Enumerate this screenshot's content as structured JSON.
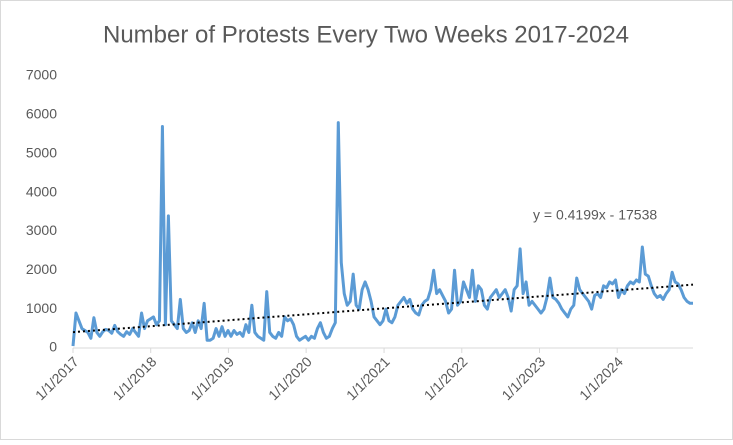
{
  "chart_data": {
    "type": "line",
    "title": "Number of Protests Every Two Weeks 2017-2024",
    "x": [
      "1/1/2017",
      "1/15/2017",
      "1/29/2017",
      "2/12/2017",
      "2/26/2017",
      "3/12/2017",
      "3/26/2017",
      "4/9/2017",
      "4/23/2017",
      "5/7/2017",
      "5/21/2017",
      "6/4/2017",
      "6/18/2017",
      "7/2/2017",
      "7/16/2017",
      "7/30/2017",
      "8/13/2017",
      "8/27/2017",
      "9/10/2017",
      "9/24/2017",
      "10/8/2017",
      "10/22/2017",
      "11/5/2017",
      "11/19/2017",
      "12/3/2017",
      "12/17/2017",
      "12/31/2017",
      "1/14/2018",
      "1/28/2018",
      "2/11/2018",
      "2/25/2018",
      "3/11/2018",
      "3/25/2018",
      "4/8/2018",
      "4/22/2018",
      "5/6/2018",
      "5/20/2018",
      "6/3/2018",
      "6/17/2018",
      "7/1/2018",
      "7/15/2018",
      "7/29/2018",
      "8/12/2018",
      "8/26/2018",
      "9/9/2018",
      "9/23/2018",
      "10/7/2018",
      "10/21/2018",
      "11/4/2018",
      "11/18/2018",
      "12/2/2018",
      "12/16/2018",
      "12/30/2018",
      "1/13/2019",
      "1/27/2019",
      "2/10/2019",
      "2/24/2019",
      "3/10/2019",
      "3/24/2019",
      "4/7/2019",
      "4/21/2019",
      "5/5/2019",
      "5/19/2019",
      "6/2/2019",
      "6/16/2019",
      "6/30/2019",
      "7/14/2019",
      "7/28/2019",
      "8/11/2019",
      "8/25/2019",
      "9/8/2019",
      "9/22/2019",
      "10/6/2019",
      "10/20/2019",
      "11/3/2019",
      "11/17/2019",
      "12/1/2019",
      "12/15/2019",
      "12/29/2019",
      "1/12/2020",
      "1/26/2020",
      "2/9/2020",
      "2/23/2020",
      "3/8/2020",
      "3/22/2020",
      "4/5/2020",
      "4/19/2020",
      "5/3/2020",
      "5/17/2020",
      "5/31/2020",
      "6/14/2020",
      "6/28/2020",
      "7/12/2020",
      "7/26/2020",
      "8/9/2020",
      "8/23/2020",
      "9/6/2020",
      "9/20/2020",
      "10/4/2020",
      "10/18/2020",
      "11/1/2020",
      "11/15/2020",
      "11/29/2020",
      "12/13/2020",
      "12/27/2020",
      "1/10/2021",
      "1/24/2021",
      "2/7/2021",
      "2/21/2021",
      "3/7/2021",
      "3/21/2021",
      "4/4/2021",
      "4/18/2021",
      "5/2/2021",
      "5/16/2021",
      "5/30/2021",
      "6/13/2021",
      "6/27/2021",
      "7/11/2021",
      "7/25/2021",
      "8/8/2021",
      "8/22/2021",
      "9/5/2021",
      "9/19/2021",
      "10/3/2021",
      "10/17/2021",
      "10/31/2021",
      "11/14/2021",
      "11/28/2021",
      "12/12/2021",
      "12/26/2021",
      "1/9/2022",
      "1/23/2022",
      "2/6/2022",
      "2/20/2022",
      "3/6/2022",
      "3/20/2022",
      "4/3/2022",
      "4/17/2022",
      "5/1/2022",
      "5/15/2022",
      "5/29/2022",
      "6/12/2022",
      "6/26/2022",
      "7/10/2022",
      "7/24/2022",
      "8/7/2022",
      "8/21/2022",
      "9/4/2022",
      "9/18/2022",
      "10/2/2022",
      "10/16/2022",
      "10/30/2022",
      "11/13/2022",
      "11/27/2022",
      "12/11/2022",
      "12/25/2022",
      "1/8/2023",
      "1/22/2023",
      "2/5/2023",
      "2/19/2023",
      "3/5/2023",
      "3/19/2023",
      "4/2/2023",
      "4/16/2023",
      "4/30/2023",
      "5/14/2023",
      "5/28/2023",
      "6/11/2023",
      "6/25/2023",
      "7/9/2023",
      "7/23/2023",
      "8/6/2023",
      "8/20/2023",
      "9/3/2023",
      "9/17/2023",
      "10/1/2023",
      "10/15/2023",
      "10/29/2023",
      "11/12/2023",
      "11/26/2023",
      "12/10/2023",
      "12/24/2023",
      "1/7/2024",
      "1/21/2024",
      "2/4/2024",
      "2/18/2024",
      "3/3/2024",
      "3/17/2024",
      "3/31/2024",
      "4/14/2024",
      "4/28/2024",
      "5/12/2024",
      "5/26/2024",
      "6/9/2024",
      "6/23/2024",
      "7/7/2024",
      "7/21/2024",
      "8/4/2024",
      "8/18/2024",
      "9/1/2024",
      "9/15/2024",
      "9/29/2024",
      "10/13/2024",
      "10/27/2024",
      "11/10/2024",
      "11/24/2024",
      "12/8/2024",
      "12/22/2024"
    ],
    "series": [
      {
        "color": "#5b9bd5",
        "values": [
          50,
          900,
          700,
          500,
          450,
          400,
          250,
          780,
          400,
          300,
          420,
          480,
          450,
          380,
          580,
          420,
          350,
          300,
          420,
          350,
          500,
          400,
          300,
          900,
          500,
          700,
          750,
          800,
          600,
          700,
          5700,
          600,
          3400,
          700,
          600,
          500,
          1250,
          500,
          400,
          450,
          650,
          400,
          700,
          500,
          1150,
          200,
          200,
          250,
          500,
          300,
          550,
          300,
          450,
          300,
          450,
          350,
          400,
          300,
          600,
          400,
          1100,
          400,
          300,
          250,
          200,
          1450,
          400,
          300,
          250,
          400,
          300,
          800,
          700,
          750,
          600,
          300,
          200,
          250,
          300,
          200,
          300,
          250,
          500,
          650,
          400,
          250,
          300,
          500,
          650,
          5800,
          2200,
          1400,
          1100,
          1200,
          1900,
          1100,
          1000,
          1500,
          1700,
          1500,
          1200,
          800,
          700,
          600,
          700,
          1000,
          700,
          650,
          800,
          1100,
          1200,
          1300,
          1150,
          1250,
          1000,
          900,
          850,
          1100,
          1200,
          1250,
          1500,
          2000,
          1400,
          1500,
          1350,
          1200,
          900,
          1000,
          2000,
          1100,
          1200,
          1700,
          1500,
          1300,
          2000,
          1200,
          1600,
          1500,
          1100,
          1000,
          1300,
          1400,
          1500,
          1300,
          1400,
          1500,
          1300,
          950,
          1500,
          1600,
          2550,
          1400,
          1700,
          1100,
          1200,
          1100,
          1000,
          900,
          1000,
          1300,
          1800,
          1300,
          1250,
          1150,
          1000,
          900,
          800,
          1000,
          1100,
          1800,
          1500,
          1400,
          1300,
          1200,
          1000,
          1350,
          1400,
          1300,
          1600,
          1550,
          1700,
          1650,
          1750,
          1300,
          1500,
          1400,
          1600,
          1700,
          1650,
          1750,
          1700,
          2600,
          1900,
          1850,
          1600,
          1400,
          1300,
          1350,
          1250,
          1400,
          1500,
          1950,
          1700,
          1650,
          1500,
          1300,
          1200,
          1150,
          1150
        ]
      }
    ],
    "trendline": {
      "label": "y = 0.4199x - 17538",
      "color": "#000000",
      "values": [
        407,
        1630
      ]
    },
    "xlim": [
      "1/1/2017",
      "12/22/2024"
    ],
    "xticks": [
      "1/1/2017",
      "1/1/2018",
      "1/1/2019",
      "1/1/2020",
      "1/1/2021",
      "1/1/2022",
      "1/1/2023",
      "1/1/2024"
    ],
    "ylim": [
      0,
      7000
    ],
    "yticks": [
      0,
      1000,
      2000,
      3000,
      4000,
      5000,
      6000,
      7000
    ],
    "grid": false
  }
}
